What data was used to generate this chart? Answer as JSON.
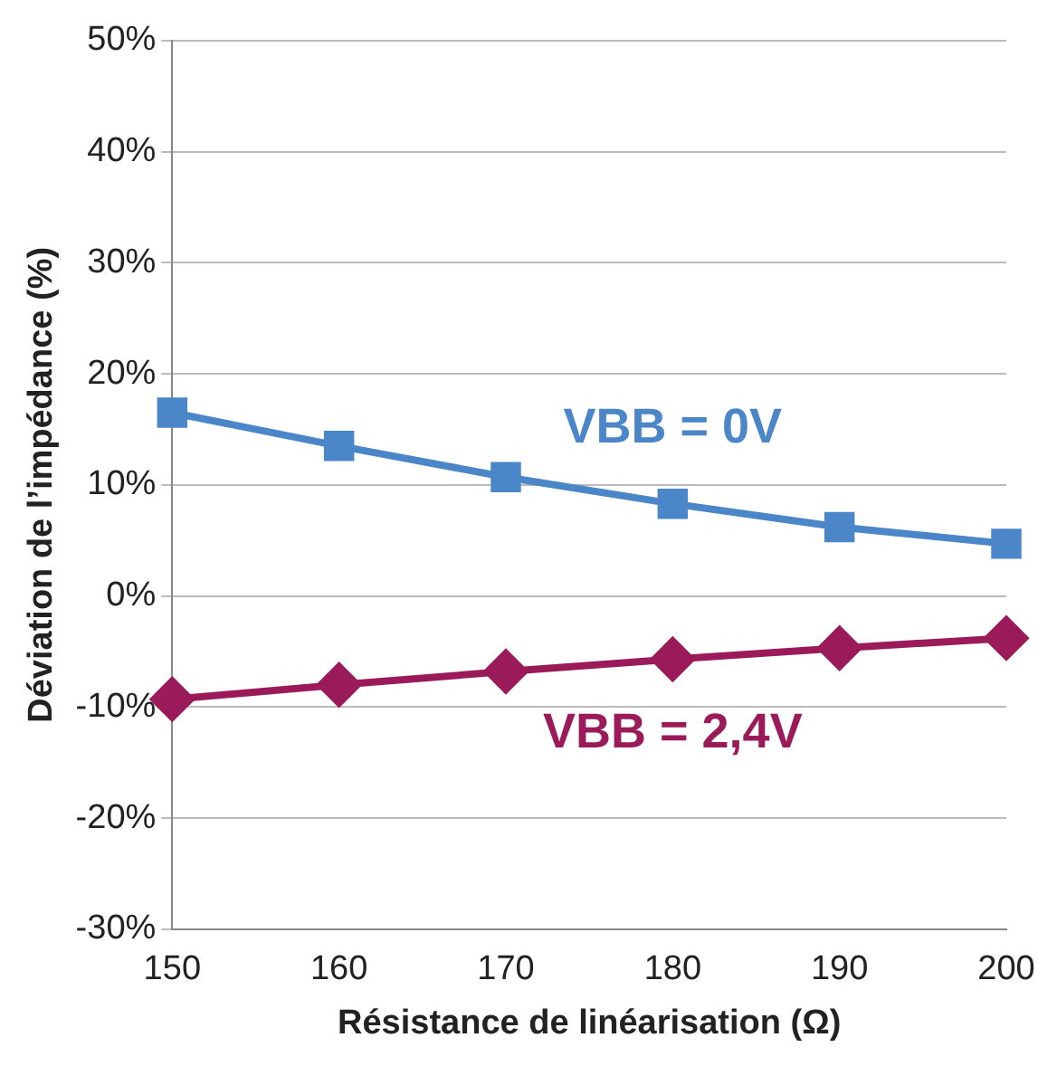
{
  "chart_data": {
    "type": "line",
    "xlabel": "Résistance de linéarisation (Ω)",
    "ylabel": "Déviation de l’impédance (%)",
    "x": [
      150,
      160,
      170,
      180,
      190,
      200
    ],
    "xlim": [
      150,
      200
    ],
    "xticks": [
      150,
      160,
      170,
      180,
      190,
      200
    ],
    "ylim": [
      -30,
      50
    ],
    "yticks": [
      {
        "value": -30,
        "label": "-30%"
      },
      {
        "value": -20,
        "label": "-20%"
      },
      {
        "value": -10,
        "label": "-10%"
      },
      {
        "value": 0,
        "label": "0%"
      },
      {
        "value": 10,
        "label": "10%"
      },
      {
        "value": 20,
        "label": "20%"
      },
      {
        "value": 30,
        "label": "30%"
      },
      {
        "value": 40,
        "label": "40%"
      },
      {
        "value": 50,
        "label": "50%"
      }
    ],
    "grid": "y",
    "legend": false,
    "series": [
      {
        "name": "VBB = 0V",
        "color": "#4a86c8",
        "marker": "square",
        "values": [
          16.5,
          13.5,
          10.7,
          8.3,
          6.2,
          4.7
        ]
      },
      {
        "name": "VBB = 2,4V",
        "color": "#9b1b5a",
        "marker": "diamond",
        "values": [
          -9.3,
          -8.0,
          -6.8,
          -5.7,
          -4.7,
          -3.8
        ]
      }
    ]
  }
}
